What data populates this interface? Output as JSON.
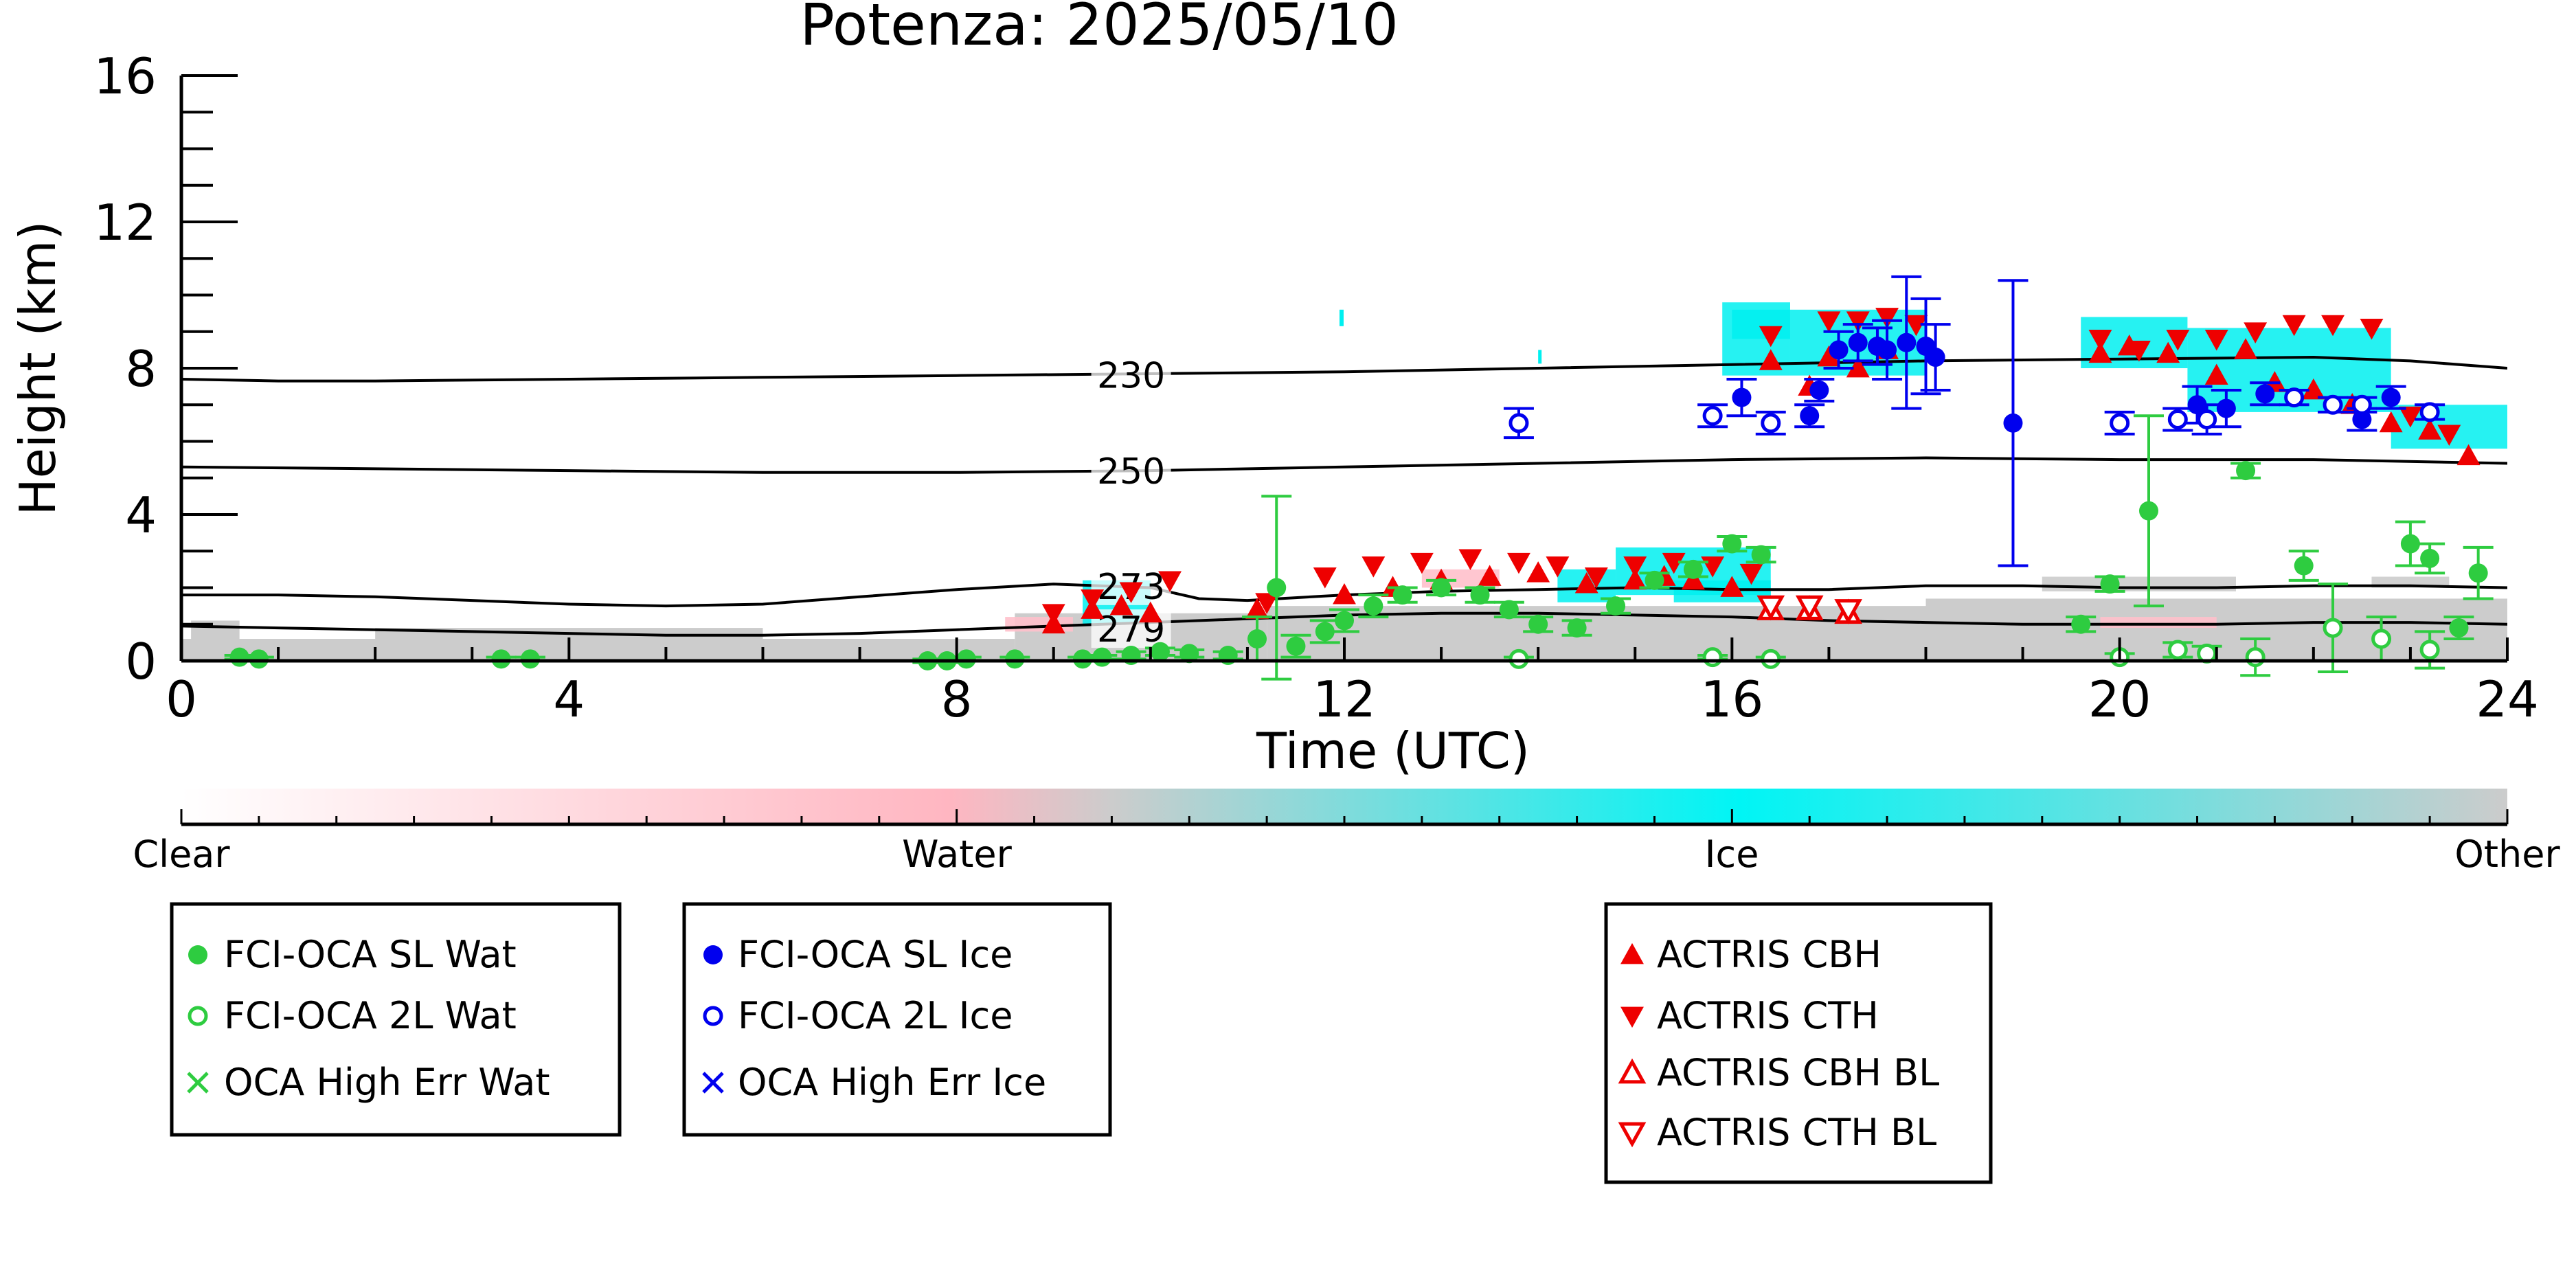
{
  "chart_data": {
    "type": "scatter",
    "title": "Potenza: 2025/05/10",
    "xlabel": "Time (UTC)",
    "ylabel": "Height (km)",
    "xlim": [
      0,
      24
    ],
    "ylim": [
      0,
      16
    ],
    "xticks": [
      "0",
      "4",
      "8",
      "12",
      "16",
      "20",
      "24"
    ],
    "yticks": [
      "0",
      "4",
      "8",
      "12",
      "16"
    ],
    "background": "cloud classification curtain (ACTRIS target classification)",
    "isotherms": [
      {
        "label": "230",
        "x": [
          0,
          1,
          2,
          4,
          6,
          8,
          10,
          12,
          14,
          16,
          18,
          20,
          22,
          23,
          24
        ],
        "y": [
          7.7,
          7.65,
          7.65,
          7.7,
          7.75,
          7.8,
          7.85,
          7.9,
          8.0,
          8.1,
          8.2,
          8.25,
          8.3,
          8.2,
          8.0
        ]
      },
      {
        "label": "250",
        "x": [
          0,
          2,
          4,
          6,
          8,
          10,
          12,
          14,
          16,
          18,
          20,
          22,
          24
        ],
        "y": [
          5.3,
          5.25,
          5.2,
          5.15,
          5.15,
          5.2,
          5.3,
          5.4,
          5.5,
          5.55,
          5.5,
          5.5,
          5.4
        ]
      },
      {
        "label": "273",
        "x": [
          0,
          1,
          2,
          3,
          4,
          5,
          6,
          7,
          8,
          9,
          10,
          10.5,
          11,
          12,
          13,
          14,
          15,
          16,
          17,
          18,
          19,
          20,
          21,
          22,
          23,
          24
        ],
        "y": [
          1.8,
          1.8,
          1.75,
          1.65,
          1.55,
          1.5,
          1.55,
          1.75,
          1.95,
          2.1,
          2.0,
          1.7,
          1.65,
          1.8,
          1.9,
          1.95,
          2.0,
          1.95,
          1.95,
          2.05,
          2.05,
          2.0,
          2.0,
          2.05,
          2.05,
          2.0
        ]
      },
      {
        "label": "279",
        "x": [
          0,
          1,
          2,
          3,
          4,
          5,
          6,
          7,
          8,
          9,
          10,
          11,
          12,
          13,
          14,
          15,
          16,
          17,
          18,
          19,
          20,
          21,
          22,
          23,
          24
        ],
        "y": [
          0.95,
          0.9,
          0.85,
          0.8,
          0.75,
          0.7,
          0.7,
          0.75,
          0.85,
          0.95,
          1.05,
          1.15,
          1.25,
          1.3,
          1.3,
          1.25,
          1.2,
          1.1,
          1.05,
          1.0,
          1.0,
          1.0,
          1.05,
          1.05,
          1.0
        ]
      }
    ],
    "series": [
      {
        "name": "FCI-OCA SL Wat",
        "color": "#2ecc40",
        "marker": "filled-circle",
        "x": [
          0.6,
          0.8,
          3.3,
          3.6,
          7.7,
          7.9,
          8.1,
          8.6,
          9.3,
          9.5,
          9.8,
          10.1,
          10.4,
          10.8,
          11.1,
          11.3,
          11.5,
          11.8,
          12.0,
          12.3,
          12.6,
          13.0,
          13.4,
          13.7,
          14.0,
          14.4,
          14.8,
          15.2,
          15.6,
          16.0,
          16.3,
          19.6,
          19.9,
          20.3,
          21.3,
          21.9,
          23.0,
          23.2,
          23.5,
          23.7
        ],
        "y": [
          0.1,
          0.05,
          0.05,
          0.05,
          0.0,
          0.0,
          0.05,
          0.05,
          0.05,
          0.1,
          0.15,
          0.25,
          0.2,
          0.15,
          0.6,
          2.0,
          0.4,
          0.8,
          1.1,
          1.5,
          1.8,
          2.0,
          1.8,
          1.4,
          1.0,
          0.9,
          1.5,
          2.2,
          2.5,
          3.2,
          2.9,
          1.0,
          2.1,
          4.1,
          5.2,
          2.6,
          3.2,
          2.8,
          0.9,
          2.4
        ],
        "yerr": [
          0.05,
          0.05,
          0.05,
          0.05,
          0.05,
          0.05,
          0.05,
          0.05,
          0.05,
          0.05,
          0.1,
          0.1,
          0.1,
          0.1,
          0.6,
          2.5,
          0.3,
          0.3,
          0.3,
          0.3,
          0.2,
          0.2,
          0.2,
          0.2,
          0.2,
          0.2,
          0.2,
          0.2,
          0.2,
          0.2,
          0.2,
          0.2,
          0.2,
          2.6,
          0.2,
          0.4,
          0.6,
          0.4,
          0.3,
          0.7
        ]
      },
      {
        "name": "FCI-OCA 2L Wat",
        "color": "#2ecc40",
        "marker": "open-circle",
        "x": [
          13.8,
          15.8,
          16.4,
          20.0,
          20.6,
          20.9,
          21.4,
          22.2,
          22.7,
          23.2
        ],
        "y": [
          0.05,
          0.1,
          0.05,
          0.1,
          0.3,
          0.2,
          0.1,
          0.9,
          0.6,
          0.3
        ],
        "yerr": [
          0.05,
          0.05,
          0.05,
          0.1,
          0.2,
          0.2,
          0.5,
          1.2,
          0.6,
          0.5
        ]
      },
      {
        "name": "OCA High Err Wat",
        "color": "#2ecc40",
        "marker": "x",
        "x": [],
        "y": []
      },
      {
        "name": "FCI-OCA SL Ice",
        "color": "#0000ee",
        "marker": "filled-circle",
        "x": [
          16.1,
          16.8,
          16.9,
          17.1,
          17.3,
          17.5,
          17.6,
          17.8,
          18.0,
          18.1,
          18.9,
          20.8,
          21.1,
          21.5,
          22.5,
          22.8
        ],
        "y": [
          7.2,
          6.7,
          7.4,
          8.5,
          8.7,
          8.6,
          8.5,
          8.7,
          8.6,
          8.3,
          6.5,
          7.0,
          6.9,
          7.3,
          6.6,
          7.2
        ],
        "yerr": [
          0.5,
          0.3,
          0.3,
          0.5,
          0.5,
          0.5,
          0.8,
          1.8,
          1.3,
          0.9,
          3.9,
          0.5,
          0.5,
          0.3,
          0.3,
          0.3
        ]
      },
      {
        "name": "FCI-OCA 2L Ice",
        "color": "#0000ee",
        "marker": "open-circle",
        "x": [
          13.8,
          15.8,
          16.4,
          20.0,
          20.6,
          20.9,
          21.8,
          22.2,
          22.5,
          23.2
        ],
        "y": [
          6.5,
          6.7,
          6.5,
          6.5,
          6.6,
          6.6,
          7.2,
          7.0,
          7.0,
          6.8
        ],
        "yerr": [
          0.4,
          0.3,
          0.3,
          0.3,
          0.3,
          0.4,
          0.2,
          0.2,
          0.2,
          0.2
        ]
      },
      {
        "name": "OCA High Err Ice",
        "color": "#0000ee",
        "marker": "x",
        "x": [],
        "y": []
      },
      {
        "name": "ACTRIS CBH",
        "color": "#ee0000",
        "marker": "triangle-up",
        "x": [
          9.0,
          9.4,
          9.7,
          10.0,
          11.1,
          12.0,
          12.5,
          13.0,
          13.5,
          14.0,
          14.5,
          15.0,
          15.3,
          15.6,
          16.0,
          16.4,
          16.8,
          17.0,
          17.3,
          17.6,
          19.8,
          20.1,
          20.5,
          21.0,
          21.3,
          21.6,
          22.0,
          22.4,
          22.8,
          23.2,
          23.6
        ],
        "y": [
          1.0,
          1.4,
          1.5,
          1.3,
          1.4,
          1.8,
          2.0,
          2.2,
          2.3,
          2.4,
          2.1,
          2.2,
          2.3,
          2.2,
          2.0,
          8.2,
          7.5,
          8.3,
          8.0,
          8.5,
          8.4,
          8.6,
          8.4,
          7.8,
          8.5,
          7.6,
          7.4,
          7.0,
          6.5,
          6.3,
          5.6
        ]
      },
      {
        "name": "ACTRIS CTH",
        "color": "#ee0000",
        "marker": "triangle-down",
        "x": [
          9.0,
          9.4,
          9.8,
          10.2,
          11.2,
          11.8,
          12.3,
          12.8,
          13.3,
          13.8,
          14.2,
          14.6,
          15.0,
          15.4,
          15.8,
          16.2,
          16.4,
          17.0,
          17.3,
          17.6,
          17.9,
          19.8,
          20.2,
          20.6,
          21.0,
          21.4,
          21.8,
          22.2,
          22.6,
          23.0,
          23.4
        ],
        "y": [
          1.3,
          1.7,
          1.9,
          2.2,
          1.6,
          2.3,
          2.6,
          2.7,
          2.8,
          2.7,
          2.6,
          2.3,
          2.6,
          2.7,
          2.6,
          2.4,
          8.9,
          9.3,
          9.3,
          9.4,
          9.2,
          8.8,
          8.5,
          8.8,
          8.8,
          9.0,
          9.2,
          9.2,
          9.1,
          6.7,
          6.2
        ]
      },
      {
        "name": "ACTRIS CBH BL",
        "color": "#ee0000",
        "marker": "open-triangle-up",
        "x": [
          16.4,
          16.8,
          17.2
        ],
        "y": [
          1.4,
          1.4,
          1.3
        ]
      },
      {
        "name": "ACTRIS CTH BL",
        "color": "#ee0000",
        "marker": "open-triangle-down",
        "x": [
          16.4,
          16.8,
          17.2
        ],
        "y": [
          1.5,
          1.5,
          1.4
        ]
      }
    ],
    "colorbar": {
      "labels": [
        "Clear",
        "Water",
        "Ice",
        "Other"
      ],
      "colors": [
        "#ffffff",
        "#ffb6c1",
        "#00f5f5",
        "#cccccc"
      ]
    },
    "legend_groups": [
      [
        "FCI-OCA SL Wat",
        "FCI-OCA 2L Wat",
        "OCA High Err Wat"
      ],
      [
        "FCI-OCA SL Ice",
        "FCI-OCA 2L Ice",
        "OCA High Err Ice"
      ],
      [
        "ACTRIS CBH",
        "ACTRIS CTH",
        "ACTRIS CBH BL",
        "ACTRIS CTH BL"
      ]
    ],
    "legend_placement": "below plot, three boxes"
  }
}
